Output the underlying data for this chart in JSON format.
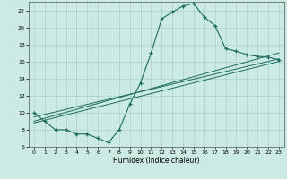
{
  "xlabel": "Humidex (Indice chaleur)",
  "bg_color": "#cceae4",
  "grid_color": "#aad4cc",
  "line_color": "#1a6b5a",
  "xlim": [
    -0.5,
    23.5
  ],
  "ylim": [
    6,
    23
  ],
  "yticks": [
    6,
    8,
    10,
    12,
    14,
    16,
    18,
    20,
    22
  ],
  "xticks": [
    0,
    1,
    2,
    3,
    4,
    5,
    6,
    7,
    8,
    9,
    10,
    11,
    12,
    13,
    14,
    15,
    16,
    17,
    18,
    19,
    20,
    21,
    22,
    23
  ],
  "curve_x": [
    0,
    1,
    2,
    3,
    4,
    5,
    6,
    7,
    8,
    9,
    10,
    11,
    12,
    13,
    14,
    15,
    16,
    17,
    18,
    19,
    20,
    21,
    22,
    23
  ],
  "curve_y": [
    10,
    9,
    8,
    8,
    7.5,
    7.5,
    7,
    6.5,
    8,
    11,
    13.5,
    17,
    21,
    21.8,
    22.5,
    22.8,
    21.2,
    20.2,
    17.5,
    17.2,
    16.8,
    16.6,
    16.5,
    16.2
  ],
  "line1_x": [
    0,
    23
  ],
  "line1_y": [
    9.5,
    16.3
  ],
  "line2_x": [
    0,
    23
  ],
  "line2_y": [
    8.8,
    16.0
  ],
  "line3_x": [
    0,
    23
  ],
  "line3_y": [
    9.0,
    17.0
  ]
}
